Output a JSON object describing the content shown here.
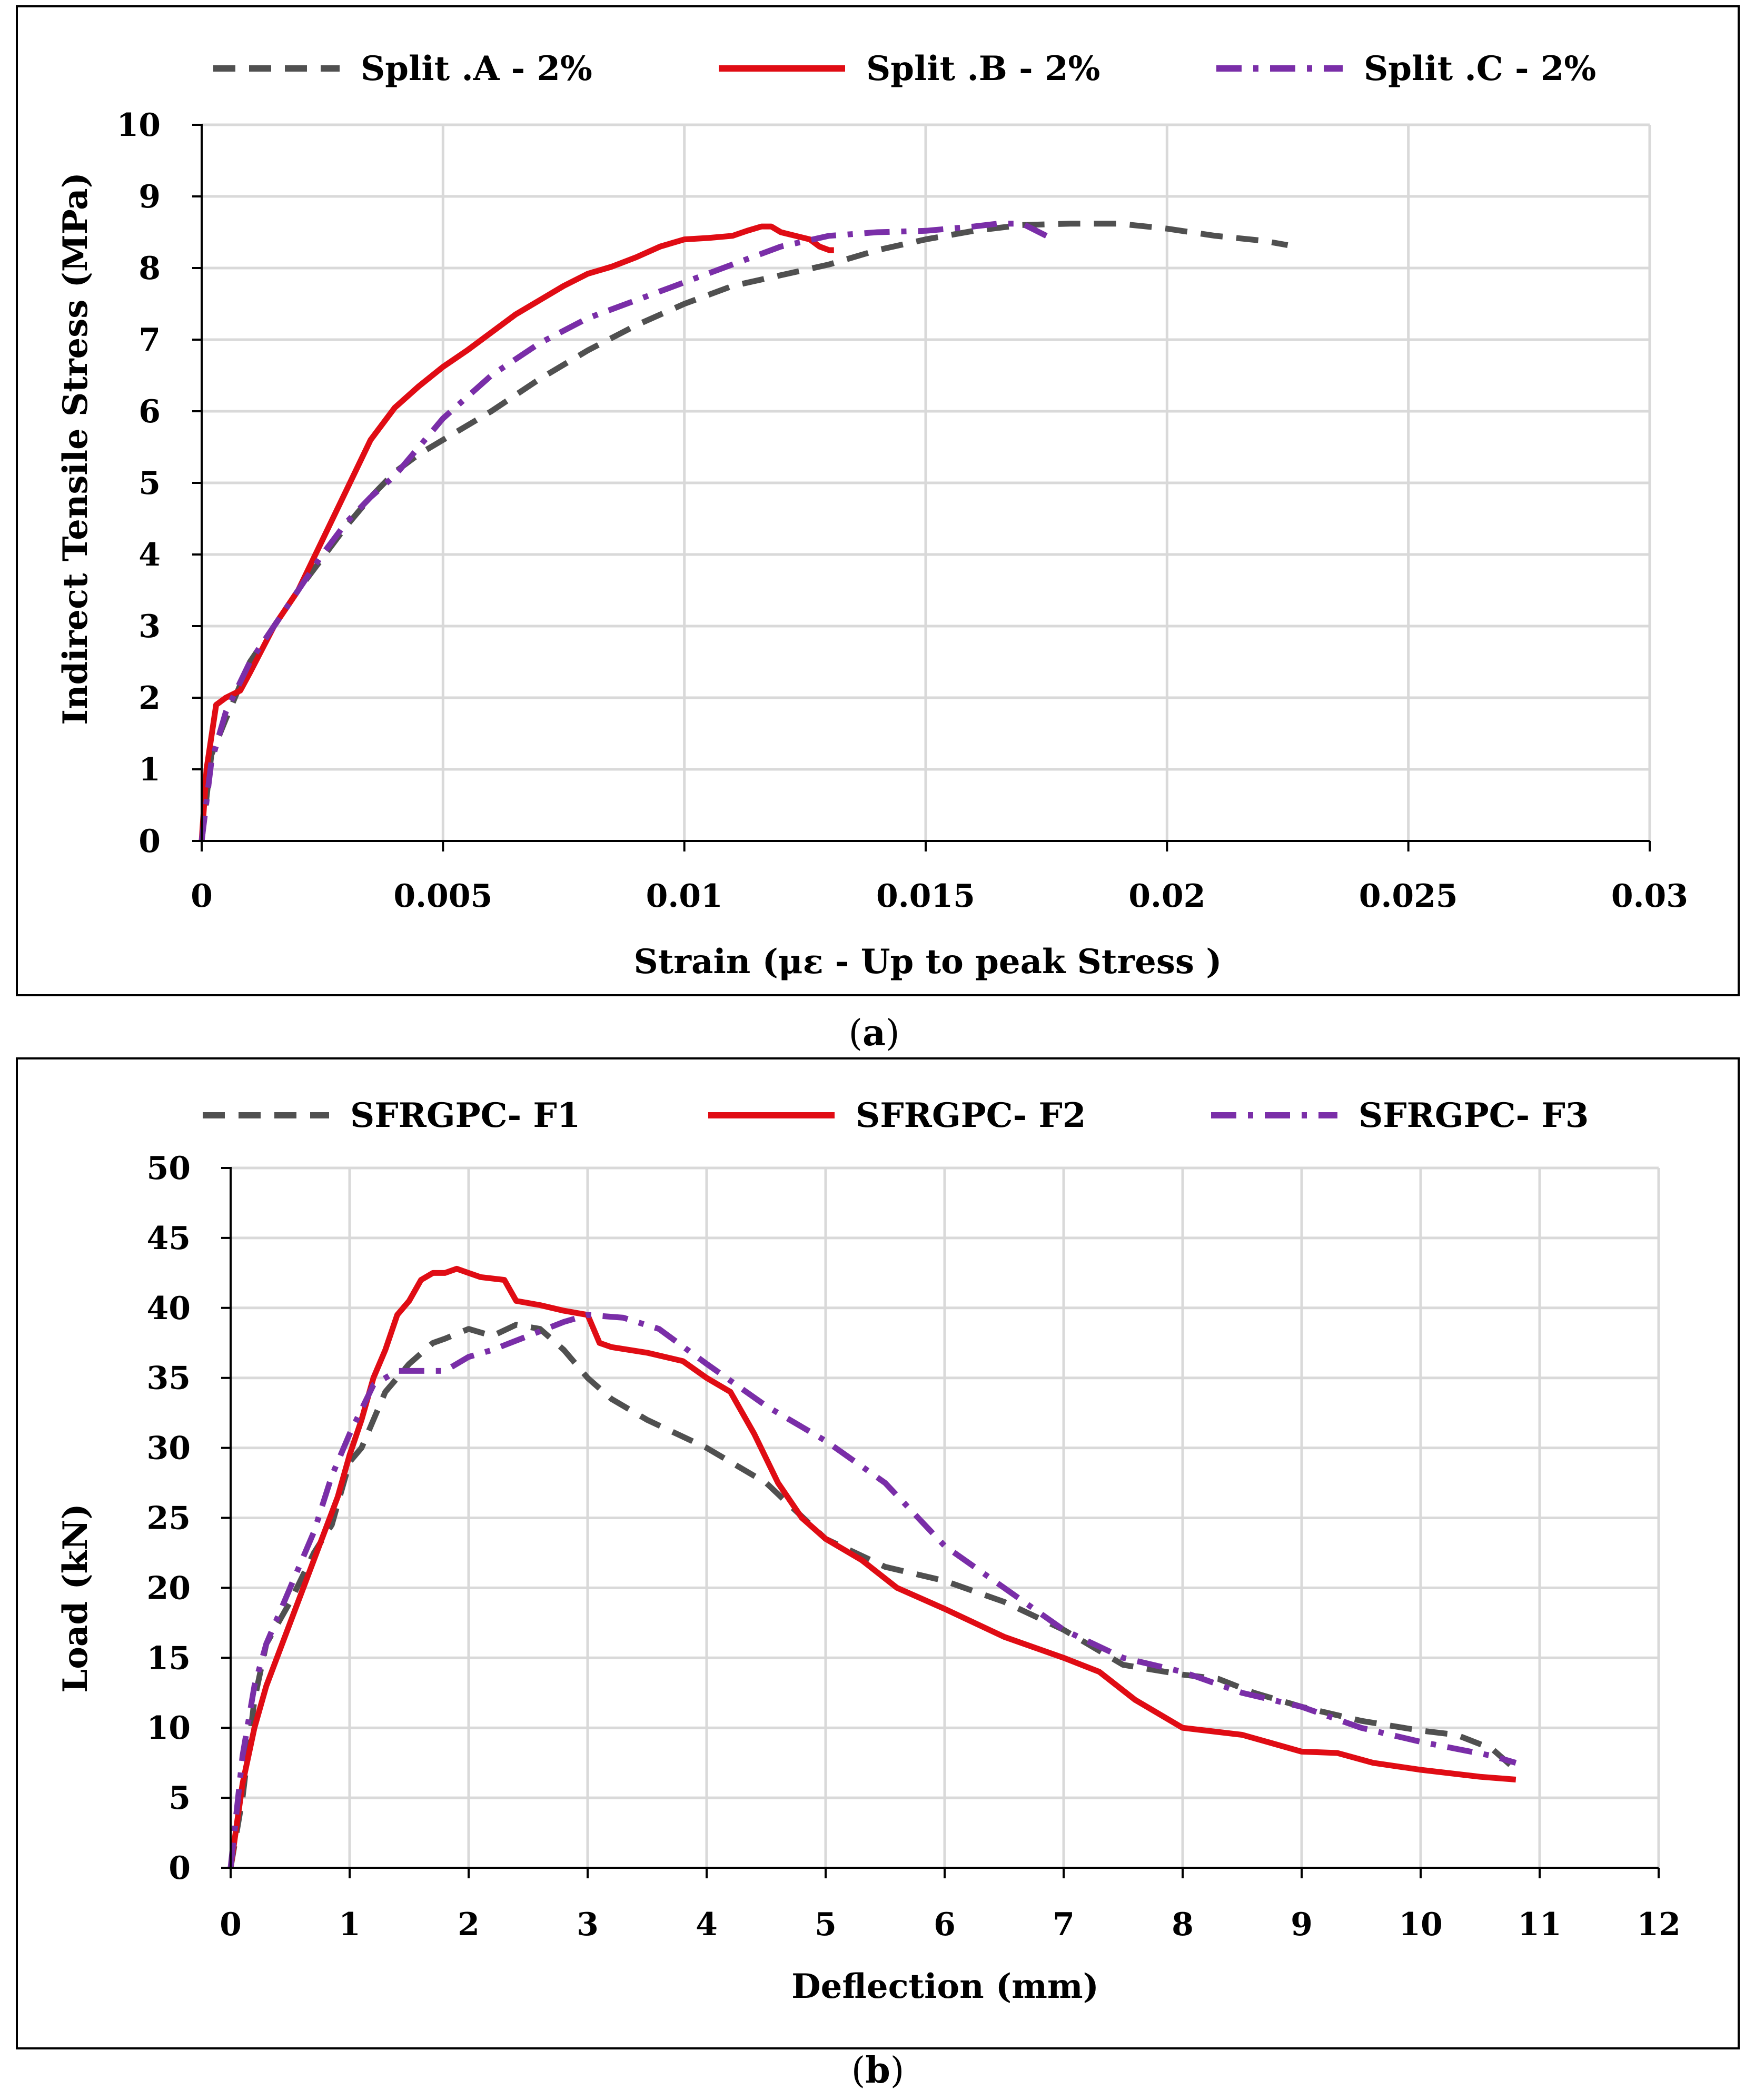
{
  "captions": [
    "(a)",
    "(b)"
  ],
  "colors": {
    "series_1": "#505050",
    "series_2": "#e00c14",
    "series_3": "#7a2ea8",
    "grid": "#d9d9d9"
  },
  "chart_data": [
    {
      "type": "line",
      "panel": "a",
      "caption": "(a)",
      "title": "",
      "xlabel": "Strain (με - Up to peak Stress )",
      "ylabel": "Indirect Tensile Stress (MPa)",
      "xlim": [
        0,
        0.03
      ],
      "ylim": [
        0,
        10
      ],
      "xticks": [
        0,
        0.005,
        0.01,
        0.015,
        0.02,
        0.025,
        0.03
      ],
      "xtick_labels": [
        "0",
        "0.005",
        "0.01",
        "0.015",
        "0.02",
        "0.025",
        "0.03"
      ],
      "yticks": [
        0,
        1,
        2,
        3,
        4,
        5,
        6,
        7,
        8,
        9,
        10
      ],
      "ytick_labels": [
        "0",
        "1",
        "2",
        "3",
        "4",
        "5",
        "6",
        "7",
        "8",
        "9",
        "10"
      ],
      "grid": true,
      "legend_position": "top",
      "series": [
        {
          "name": "Split .A -  2%",
          "style": "dashed",
          "color": "#505050",
          "x": [
            0,
            0.0002,
            0.0005,
            0.001,
            0.0015,
            0.002,
            0.0025,
            0.003,
            0.0035,
            0.004,
            0.0045,
            0.005,
            0.006,
            0.007,
            0.008,
            0.009,
            0.01,
            0.011,
            0.012,
            0.013,
            0.014,
            0.015,
            0.016,
            0.017,
            0.018,
            0.019,
            0.02,
            0.021,
            0.022,
            0.0225
          ],
          "y": [
            0,
            1.2,
            1.7,
            2.5,
            3.0,
            3.5,
            3.95,
            4.4,
            4.8,
            5.15,
            5.4,
            5.6,
            6.0,
            6.45,
            6.85,
            7.2,
            7.5,
            7.75,
            7.9,
            8.05,
            8.25,
            8.4,
            8.52,
            8.6,
            8.62,
            8.62,
            8.55,
            8.45,
            8.38,
            8.32
          ]
        },
        {
          "name": "Split .B -  2%",
          "style": "solid",
          "color": "#e00c14",
          "x": [
            0,
            0.0001,
            0.0003,
            0.0005,
            0.0008,
            0.001,
            0.0015,
            0.002,
            0.0025,
            0.003,
            0.0035,
            0.004,
            0.0045,
            0.005,
            0.0055,
            0.006,
            0.0065,
            0.007,
            0.0075,
            0.008,
            0.0085,
            0.009,
            0.0095,
            0.01,
            0.0105,
            0.011,
            0.0113,
            0.0116,
            0.0118,
            0.012,
            0.0123,
            0.0126,
            0.0128,
            0.013,
            0.0131
          ],
          "y": [
            0,
            1.0,
            1.9,
            2.0,
            2.1,
            2.35,
            3.0,
            3.5,
            4.2,
            4.9,
            5.6,
            6.05,
            6.35,
            6.62,
            6.85,
            7.1,
            7.35,
            7.55,
            7.75,
            7.92,
            8.02,
            8.15,
            8.3,
            8.4,
            8.42,
            8.45,
            8.52,
            8.58,
            8.58,
            8.5,
            8.45,
            8.4,
            8.3,
            8.25,
            8.25
          ]
        },
        {
          "name": "Split .C -  2%",
          "style": "dash-dot",
          "color": "#7a2ea8",
          "x": [
            0,
            0.0002,
            0.0005,
            0.001,
            0.0015,
            0.002,
            0.0025,
            0.003,
            0.0035,
            0.004,
            0.0045,
            0.005,
            0.006,
            0.007,
            0.008,
            0.009,
            0.01,
            0.011,
            0.012,
            0.013,
            0.014,
            0.015,
            0.016,
            0.0165,
            0.017,
            0.0175
          ],
          "y": [
            0,
            1.1,
            1.8,
            2.5,
            3.0,
            3.5,
            4.0,
            4.45,
            4.8,
            5.1,
            5.5,
            5.9,
            6.5,
            6.95,
            7.3,
            7.55,
            7.8,
            8.05,
            8.3,
            8.45,
            8.5,
            8.52,
            8.58,
            8.62,
            8.62,
            8.45
          ]
        }
      ]
    },
    {
      "type": "line",
      "panel": "b",
      "caption": "(b)",
      "title": "",
      "xlabel": "Deflection (mm)",
      "ylabel": "Load (kN)",
      "xlim": [
        0,
        12
      ],
      "ylim": [
        0,
        50
      ],
      "xticks": [
        0,
        1,
        2,
        3,
        4,
        5,
        6,
        7,
        8,
        9,
        10,
        11,
        12
      ],
      "xtick_labels": [
        "0",
        "1",
        "2",
        "3",
        "4",
        "5",
        "6",
        "7",
        "8",
        "9",
        "10",
        "11",
        "12"
      ],
      "yticks": [
        0,
        5,
        10,
        15,
        20,
        25,
        30,
        35,
        40,
        45,
        50
      ],
      "ytick_labels": [
        "0",
        "5",
        "10",
        "15",
        "20",
        "25",
        "30",
        "35",
        "40",
        "45",
        "50"
      ],
      "grid": true,
      "legend_position": "top",
      "series": [
        {
          "name": "SFRGPC- F1",
          "style": "dashed",
          "color": "#505050",
          "x": [
            0,
            0.1,
            0.2,
            0.3,
            0.5,
            0.7,
            0.85,
            1.0,
            1.1,
            1.3,
            1.5,
            1.7,
            1.8,
            2.0,
            2.2,
            2.4,
            2.6,
            2.8,
            3.0,
            3.2,
            3.5,
            4.0,
            4.5,
            5.0,
            5.5,
            6.0,
            6.5,
            7.0,
            7.5,
            8.0,
            8.3,
            8.6,
            9.0,
            9.5,
            10.0,
            10.3,
            10.6,
            10.8
          ],
          "y": [
            0,
            5,
            12,
            16,
            19,
            22.5,
            24.5,
            29,
            30,
            34,
            36,
            37.5,
            37.8,
            38.5,
            38,
            38.8,
            38.5,
            37,
            35,
            33.5,
            32,
            30,
            27.5,
            23.5,
            21.5,
            20.5,
            19,
            17,
            14.5,
            13.8,
            13.5,
            12.5,
            11.5,
            10.5,
            9.8,
            9.5,
            8.5,
            7
          ]
        },
        {
          "name": "SFRGPC- F2",
          "style": "solid",
          "color": "#e00c14",
          "x": [
            0,
            0.05,
            0.1,
            0.2,
            0.3,
            0.5,
            0.7,
            0.9,
            1.0,
            1.1,
            1.2,
            1.3,
            1.4,
            1.5,
            1.6,
            1.7,
            1.8,
            1.9,
            2.0,
            2.1,
            2.3,
            2.4,
            2.6,
            2.8,
            3.0,
            3.1,
            3.2,
            3.5,
            3.8,
            4.0,
            4.2,
            4.4,
            4.6,
            4.8,
            5.0,
            5.3,
            5.6,
            6.0,
            6.5,
            7.0,
            7.3,
            7.6,
            8.0,
            8.5,
            9.0,
            9.3,
            9.6,
            10.0,
            10.5,
            10.8
          ],
          "y": [
            0,
            3,
            6,
            10,
            13,
            17.5,
            22,
            26.5,
            29.5,
            32,
            35,
            37,
            39.5,
            40.5,
            42,
            42.5,
            42.5,
            42.8,
            42.5,
            42.2,
            42,
            40.5,
            40.2,
            39.8,
            39.5,
            37.5,
            37.2,
            36.8,
            36.2,
            35,
            34,
            31,
            27.5,
            25,
            23.5,
            22,
            20,
            18.5,
            16.5,
            15,
            14,
            12,
            10,
            9.5,
            8.3,
            8.2,
            7.5,
            7,
            6.5,
            6.3
          ]
        },
        {
          "name": "SFRGPC- F3",
          "style": "dash-dot",
          "color": "#7a2ea8",
          "x": [
            0,
            0.1,
            0.2,
            0.3,
            0.5,
            0.7,
            0.85,
            1.0,
            1.2,
            1.4,
            1.6,
            1.8,
            2.0,
            2.2,
            2.5,
            2.8,
            3.0,
            3.3,
            3.6,
            4.0,
            4.5,
            5.0,
            5.5,
            6.0,
            6.5,
            7.0,
            7.5,
            8.0,
            8.5,
            9.0,
            9.5,
            10.0,
            10.3,
            10.6,
            10.8
          ],
          "y": [
            0,
            8,
            13,
            16,
            20,
            24,
            28,
            31,
            34.5,
            35.5,
            35.5,
            35.5,
            36.5,
            37,
            38,
            39,
            39.5,
            39.3,
            38.5,
            36,
            33,
            30.5,
            27.5,
            23,
            20,
            17,
            15,
            14,
            12.5,
            11.5,
            10,
            9,
            8.5,
            8,
            7.5
          ]
        }
      ]
    }
  ]
}
